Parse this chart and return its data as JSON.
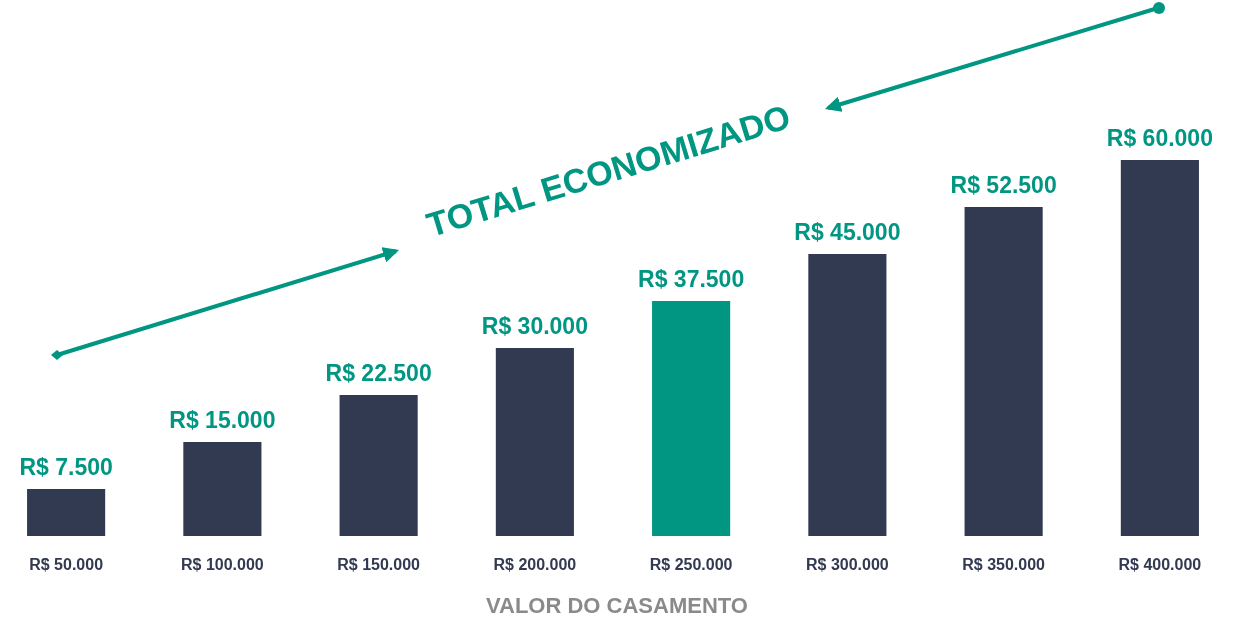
{
  "chart_data": {
    "type": "bar",
    "xlabel": "VALOR DO CASAMENTO",
    "categories": [
      "R$ 50.000",
      "R$ 100.000",
      "R$ 150.000",
      "R$ 200.000",
      "R$ 250.000",
      "R$ 300.000",
      "R$ 350.000",
      "R$ 400.000"
    ],
    "values": [
      7500,
      15000,
      22500,
      30000,
      37500,
      45000,
      52500,
      60000
    ],
    "colors": [
      "#323a52",
      "#323a52",
      "#323a52",
      "#323a52",
      "#009682",
      "#323a52",
      "#323a52",
      "#323a52"
    ],
    "value_labels": [
      "R$ 7.500",
      "R$ 15.000",
      "R$ 22.500",
      "R$ 30.000",
      "R$ 37.500",
      "R$ 45.000",
      "R$ 52.500",
      "R$ 60.000"
    ],
    "annotations": [
      "TOTAL ECONOMIZADO"
    ]
  }
}
